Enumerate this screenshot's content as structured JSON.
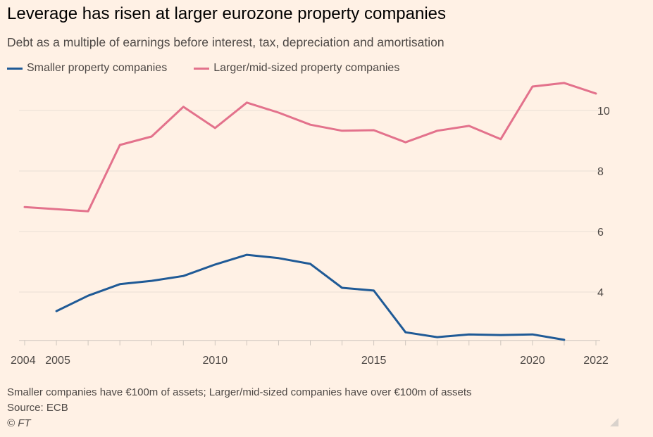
{
  "chart_data": {
    "type": "line",
    "title": "Leverage has risen at larger eurozone property companies",
    "subtitle": "Debt as a multiple of earnings before interest, tax, depreciation and amortisation",
    "xlabel": "",
    "ylabel": "",
    "x_tick_labels": [
      "2004",
      "2005",
      "2010",
      "2015",
      "2020",
      "2022"
    ],
    "x_ticks": [
      2004,
      2005,
      2010,
      2015,
      2020,
      2022
    ],
    "y_tick_labels": [
      "4",
      "6",
      "8",
      "10"
    ],
    "y_ticks": [
      4,
      6,
      8,
      10
    ],
    "xlim": [
      2004,
      2022
    ],
    "ylim": [
      2.4,
      11.2
    ],
    "grid": "horizontal",
    "y_axis_side": "right",
    "legend_placement": "top-left",
    "series": [
      {
        "name": "Smaller property companies",
        "color": "#1F5A96",
        "x": [
          2005,
          2006,
          2007,
          2008,
          2009,
          2010,
          2011,
          2012,
          2013,
          2014,
          2015,
          2016,
          2017,
          2018,
          2019,
          2020,
          2021
        ],
        "values": [
          3.37,
          3.88,
          4.26,
          4.37,
          4.53,
          4.91,
          5.23,
          5.12,
          4.93,
          4.14,
          4.05,
          2.67,
          2.51,
          2.6,
          2.58,
          2.6,
          2.42
        ]
      },
      {
        "name": "Larger/mid-sized property companies",
        "color": "#E3728C",
        "x": [
          2004,
          2005,
          2006,
          2007,
          2008,
          2009,
          2010,
          2011,
          2012,
          2013,
          2014,
          2015,
          2016,
          2017,
          2018,
          2019,
          2020,
          2021,
          2022
        ],
        "values": [
          6.81,
          6.74,
          6.67,
          8.86,
          9.14,
          10.12,
          9.42,
          10.26,
          9.93,
          9.53,
          9.33,
          9.35,
          8.95,
          9.33,
          9.49,
          9.05,
          10.79,
          10.91,
          10.56
        ]
      }
    ]
  },
  "footer": {
    "note": "Smaller companies have €100m of assets; Larger/mid-sized companies have over €100m of assets",
    "source": "Source: ECB",
    "copyright": "© FT"
  }
}
